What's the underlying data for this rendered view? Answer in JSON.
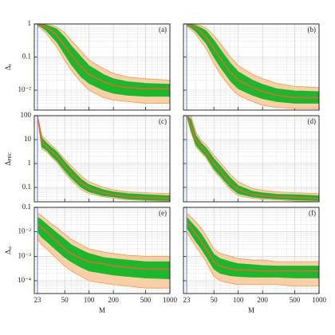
{
  "chart_data": [
    {
      "type": "line",
      "panel_label": "(a)",
      "log_x": true,
      "log_y": true,
      "grid": true,
      "ylabel": "Δ",
      "ylabel_sub": "ε",
      "xlim": [
        21,
        1000
      ],
      "xticks": [
        23,
        50,
        100,
        200,
        500,
        1000
      ],
      "ylim": [
        0.0025,
        1
      ],
      "yticks": [
        1,
        0.1,
        {
          "value": 0.01,
          "label": "10⁻²"
        }
      ],
      "vline": {
        "x": 23,
        "color": "#7f8ff0"
      },
      "x": [
        23,
        26,
        30,
        35,
        40,
        50,
        60,
        80,
        100,
        150,
        200,
        300,
        500,
        1000
      ],
      "bands": [
        {
          "color": "#f9cfa8",
          "edge": "#f39a4a",
          "low": [
            0.85,
            0.7,
            0.5,
            0.3,
            0.2,
            0.08,
            0.04,
            0.017,
            0.01,
            0.006,
            0.005,
            0.0045,
            0.004,
            0.004
          ],
          "high": [
            1,
            1,
            0.95,
            0.9,
            0.8,
            0.55,
            0.32,
            0.15,
            0.08,
            0.045,
            0.032,
            0.025,
            0.022,
            0.02
          ]
        },
        {
          "color": "#1bb82c",
          "edge": "#1bb82c",
          "low": [
            0.9,
            0.8,
            0.6,
            0.4,
            0.28,
            0.12,
            0.06,
            0.025,
            0.016,
            0.01,
            0.008,
            0.007,
            0.0065,
            0.0065
          ],
          "high": [
            1,
            0.97,
            0.9,
            0.8,
            0.7,
            0.4,
            0.22,
            0.1,
            0.055,
            0.03,
            0.022,
            0.018,
            0.016,
            0.015
          ]
        }
      ],
      "series": [
        {
          "color": "#f0603a",
          "values": [
            0.95,
            0.9,
            0.78,
            0.6,
            0.45,
            0.22,
            0.12,
            0.05,
            0.03,
            0.018,
            0.014,
            0.012,
            0.011,
            0.011
          ]
        }
      ]
    },
    {
      "type": "line",
      "panel_label": "(b)",
      "log_x": true,
      "log_y": true,
      "grid": true,
      "xlim": [
        21,
        1000
      ],
      "xticks": [
        23,
        50,
        100,
        200,
        500,
        1000
      ],
      "ylim": [
        0.0025,
        1
      ],
      "yticks": [
        1,
        0.1,
        0.01
      ],
      "vline": {
        "x": 23,
        "color": "#7f8ff0"
      },
      "x": [
        23,
        26,
        30,
        35,
        40,
        50,
        60,
        80,
        100,
        150,
        200,
        300,
        500,
        1000
      ],
      "bands": [
        {
          "color": "#f9cfa8",
          "edge": "#f39a4a",
          "low": [
            0.85,
            0.68,
            0.48,
            0.28,
            0.18,
            0.065,
            0.03,
            0.012,
            0.007,
            0.0045,
            0.0035,
            0.003,
            0.0028,
            0.0028
          ],
          "high": [
            1,
            1,
            0.94,
            0.88,
            0.75,
            0.45,
            0.26,
            0.1,
            0.055,
            0.03,
            0.022,
            0.016,
            0.013,
            0.012
          ]
        },
        {
          "color": "#1bb82c",
          "edge": "#1bb82c",
          "low": [
            0.9,
            0.78,
            0.58,
            0.38,
            0.26,
            0.1,
            0.05,
            0.019,
            0.011,
            0.007,
            0.0055,
            0.0045,
            0.004,
            0.004
          ],
          "high": [
            1,
            0.96,
            0.88,
            0.75,
            0.62,
            0.32,
            0.17,
            0.065,
            0.036,
            0.02,
            0.015,
            0.011,
            0.0095,
            0.009
          ]
        }
      ],
      "series": [
        {
          "color": "#f0603a",
          "values": [
            0.95,
            0.88,
            0.75,
            0.55,
            0.4,
            0.18,
            0.09,
            0.035,
            0.02,
            0.012,
            0.009,
            0.007,
            0.006,
            0.006
          ]
        }
      ]
    },
    {
      "type": "line",
      "panel_label": "(c)",
      "log_x": true,
      "log_y": true,
      "grid": true,
      "ylabel": "Δ",
      "ylabel_sub": "PRC",
      "xlim": [
        21,
        1000
      ],
      "xticks": [
        23,
        50,
        100,
        200,
        500,
        1000
      ],
      "ylim": [
        0.025,
        100
      ],
      "yticks": [
        100,
        10,
        1,
        0.1
      ],
      "vline": {
        "x": 23,
        "color": "#7f8ff0"
      },
      "x": [
        23,
        26,
        30,
        35,
        40,
        50,
        60,
        80,
        100,
        150,
        200,
        300,
        500,
        1000
      ],
      "bands": [
        {
          "color": "#f9cfa8",
          "edge": "#f39a4a",
          "low": [
            100,
            4,
            3,
            1.7,
            1.1,
            0.4,
            0.2,
            0.08,
            0.055,
            0.04,
            0.035,
            0.03,
            0.028,
            0.026
          ],
          "high": [
            100,
            15,
            9,
            5.5,
            3.6,
            1.5,
            0.8,
            0.3,
            0.17,
            0.1,
            0.08,
            0.065,
            0.06,
            0.055
          ]
        },
        {
          "color": "#1bb82c",
          "edge": "#1bb82c",
          "low": [
            100,
            5,
            3.5,
            2,
            1.3,
            0.5,
            0.25,
            0.1,
            0.065,
            0.045,
            0.04,
            0.033,
            0.03,
            0.028
          ],
          "high": [
            100,
            12,
            7,
            4.5,
            3,
            1.2,
            0.6,
            0.22,
            0.13,
            0.08,
            0.065,
            0.055,
            0.05,
            0.045
          ]
        }
      ],
      "series": [
        {
          "color": "#f0603a",
          "values": [
            100,
            8,
            5,
            3,
            2,
            0.8,
            0.4,
            0.15,
            0.09,
            0.06,
            0.05,
            0.04,
            0.038,
            0.035
          ]
        }
      ]
    },
    {
      "type": "line",
      "panel_label": "(d)",
      "log_x": true,
      "log_y": true,
      "grid": true,
      "xlim": [
        21,
        1000
      ],
      "xticks": [
        23,
        50,
        100,
        200,
        500,
        1000
      ],
      "ylim": [
        0.025,
        100
      ],
      "yticks": [
        100,
        10,
        1,
        0.1
      ],
      "vline": {
        "x": 23,
        "color": "#7f8ff0"
      },
      "x": [
        23,
        26,
        30,
        35,
        40,
        50,
        60,
        80,
        100,
        150,
        200,
        300,
        500,
        1000
      ],
      "bands": [
        {
          "color": "#f9cfa8",
          "edge": "#f39a4a",
          "low": [
            100,
            20,
            5,
            2.7,
            1.7,
            0.5,
            0.25,
            0.08,
            0.045,
            0.035,
            0.032,
            0.03,
            0.027,
            0.025
          ],
          "high": [
            100,
            100,
            20,
            9,
            6,
            2.2,
            1.1,
            0.35,
            0.17,
            0.09,
            0.075,
            0.065,
            0.06,
            0.055
          ]
        },
        {
          "color": "#1bb82c",
          "edge": "#1bb82c",
          "low": [
            100,
            25,
            6,
            3.2,
            2,
            0.6,
            0.3,
            0.1,
            0.055,
            0.04,
            0.036,
            0.033,
            0.03,
            0.028
          ],
          "high": [
            100,
            70,
            15,
            7,
            4.5,
            1.6,
            0.8,
            0.25,
            0.12,
            0.07,
            0.06,
            0.052,
            0.05,
            0.045
          ]
        }
      ],
      "series": [
        {
          "color": "#f0603a",
          "values": [
            100,
            40,
            10,
            5,
            3,
            1,
            0.5,
            0.15,
            0.08,
            0.05,
            0.045,
            0.04,
            0.038,
            0.035
          ]
        }
      ]
    },
    {
      "type": "line",
      "panel_label": "(e)",
      "log_x": true,
      "log_y": true,
      "grid": true,
      "ylabel": "Δ",
      "ylabel_sub": "ω",
      "xlabel": "M",
      "xlim": [
        21,
        1000
      ],
      "xticks": [
        23,
        50,
        100,
        200,
        500,
        1000
      ],
      "ylim": [
        3e-05,
        0.1
      ],
      "yticks": [
        0.1,
        {
          "value": 0.01,
          "label": "10⁻²"
        },
        {
          "value": 0.001,
          "label": "10⁻³"
        },
        {
          "value": 0.0001,
          "label": "10⁻⁴"
        }
      ],
      "vline": {
        "x": 23,
        "color": "#7f8ff0"
      },
      "x": [
        23,
        26,
        30,
        35,
        40,
        50,
        60,
        80,
        100,
        150,
        200,
        300,
        500,
        1000
      ],
      "bands": [
        {
          "color": "#f9cfa8",
          "edge": "#f39a4a",
          "low": [
            0.005,
            0.003,
            0.002,
            0.0012,
            0.0008,
            0.0004,
            0.00025,
            0.00015,
            0.0001,
            8e-05,
            7e-05,
            6e-05,
            5e-05,
            5e-05
          ],
          "high": [
            0.06,
            0.045,
            0.03,
            0.02,
            0.015,
            0.008,
            0.005,
            0.003,
            0.002,
            0.0015,
            0.0013,
            0.0011,
            0.001,
            0.001
          ]
        },
        {
          "color": "#1bb82c",
          "edge": "#1bb82c",
          "low": [
            0.01,
            0.006,
            0.004,
            0.0025,
            0.0017,
            0.0009,
            0.0006,
            0.00035,
            0.00025,
            0.0002,
            0.00017,
            0.00015,
            0.00013,
            0.00012
          ],
          "high": [
            0.04,
            0.03,
            0.02,
            0.013,
            0.009,
            0.005,
            0.003,
            0.0018,
            0.0013,
            0.0009,
            0.0008,
            0.0007,
            0.0006,
            0.0006
          ]
        }
      ],
      "series": [
        {
          "color": "#f0603a",
          "values": [
            0.02,
            0.015,
            0.01,
            0.006,
            0.004,
            0.002,
            0.0013,
            0.0008,
            0.0006,
            0.0005,
            0.0004,
            0.00035,
            0.0003,
            0.0003
          ]
        }
      ]
    },
    {
      "type": "line",
      "panel_label": "(f)",
      "log_x": true,
      "log_y": true,
      "grid": true,
      "xlabel": "M",
      "xlim": [
        21,
        1000
      ],
      "xticks": [
        23,
        50,
        100,
        200,
        500,
        1000
      ],
      "ylim": [
        3e-05,
        0.1
      ],
      "yticks": [
        0.1,
        0.01,
        0.001,
        0.0001
      ],
      "vline": {
        "x": 23,
        "color": "#7f8ff0"
      },
      "x": [
        23,
        26,
        30,
        35,
        40,
        50,
        60,
        80,
        100,
        150,
        200,
        300,
        500,
        1000
      ],
      "bands": [
        {
          "color": "#f9cfa8",
          "edge": "#f39a4a",
          "low": [
            0.01,
            0.005,
            0.0025,
            0.0012,
            0.0006,
            0.00015,
            0.0001,
            8e-05,
            7e-05,
            7e-05,
            7e-05,
            7e-05,
            6e-05,
            6e-05
          ],
          "high": [
            0.06,
            0.04,
            0.025,
            0.014,
            0.007,
            0.002,
            0.0013,
            0.001,
            0.0008,
            0.0007,
            0.0007,
            0.0006,
            0.0006,
            0.0006
          ]
        },
        {
          "color": "#1bb82c",
          "edge": "#1bb82c",
          "low": [
            0.015,
            0.008,
            0.004,
            0.002,
            0.001,
            0.0003,
            0.0002,
            0.00016,
            0.00015,
            0.00014,
            0.00014,
            0.00014,
            0.00013,
            0.00013
          ],
          "high": [
            0.04,
            0.025,
            0.015,
            0.008,
            0.004,
            0.0012,
            0.0008,
            0.0006,
            0.0005,
            0.00045,
            0.00042,
            0.0004,
            0.0004,
            0.0004
          ]
        }
      ],
      "series": [
        {
          "color": "#f0603a",
          "values": [
            0.025,
            0.015,
            0.008,
            0.004,
            0.002,
            0.0006,
            0.0004,
            0.0003,
            0.00028,
            0.00026,
            0.00025,
            0.00025,
            0.00025,
            0.00025
          ]
        }
      ]
    }
  ]
}
